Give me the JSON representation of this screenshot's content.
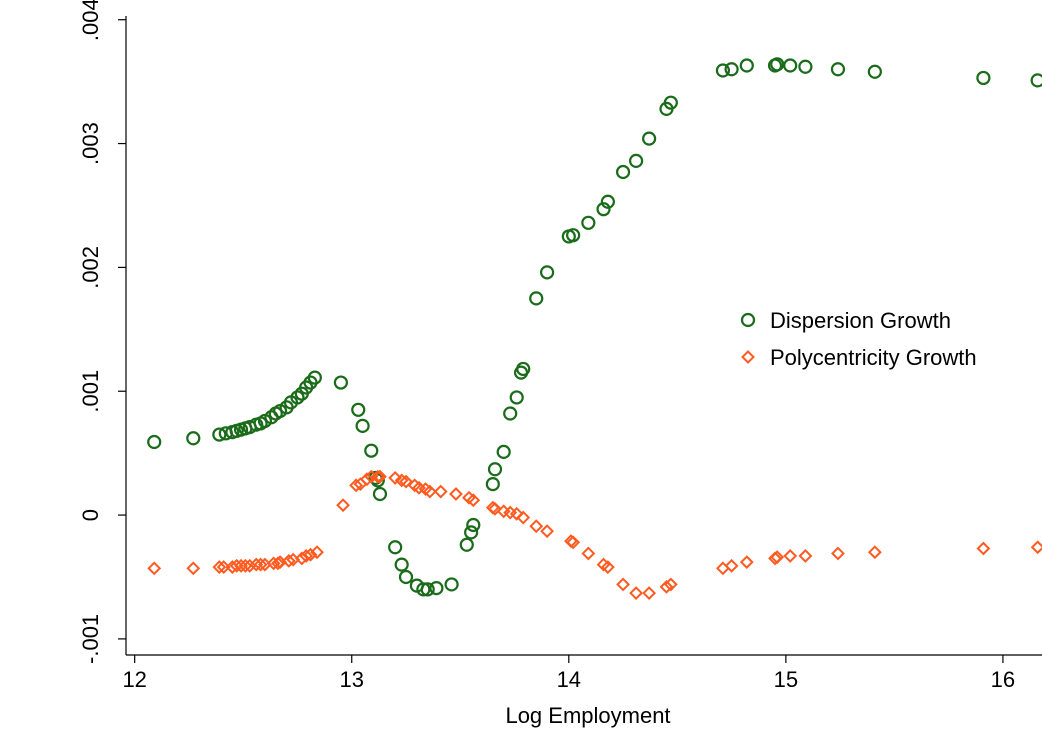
{
  "chart_data": {
    "type": "scatter",
    "title": "",
    "xlabel": "Log Employment",
    "ylabel": "",
    "xlim": [
      11.96,
      16.18
    ],
    "ylim": [
      -0.00113,
      0.00403
    ],
    "xticks": [
      12,
      13,
      14,
      15,
      16
    ],
    "xtick_labels": [
      "12",
      "13",
      "14",
      "15",
      "16"
    ],
    "yticks": [
      -0.001,
      0,
      0.001,
      0.002,
      0.003,
      0.004
    ],
    "ytick_labels": [
      "-.001",
      "0",
      ".001",
      ".002",
      ".003",
      ".004"
    ],
    "grid": false,
    "legend_position": "right",
    "colors": {
      "dispersion": "#1a6b1a",
      "polycentricity": "#ff5a1f"
    },
    "series": [
      {
        "name": "Dispersion Growth",
        "marker": "circle",
        "color": "#1a6b1a",
        "points": [
          [
            12.09,
            0.00059
          ],
          [
            12.27,
            0.00062
          ],
          [
            12.39,
            0.00065
          ],
          [
            12.42,
            0.00066
          ],
          [
            12.45,
            0.00067
          ],
          [
            12.47,
            0.00068
          ],
          [
            12.49,
            0.00069
          ],
          [
            12.51,
            0.0007
          ],
          [
            12.53,
            0.00071
          ],
          [
            12.56,
            0.00073
          ],
          [
            12.58,
            0.00074
          ],
          [
            12.6,
            0.00076
          ],
          [
            12.63,
            0.00079
          ],
          [
            12.65,
            0.00082
          ],
          [
            12.67,
            0.00084
          ],
          [
            12.7,
            0.00087
          ],
          [
            12.72,
            0.00091
          ],
          [
            12.75,
            0.00095
          ],
          [
            12.77,
            0.00098
          ],
          [
            12.79,
            0.00103
          ],
          [
            12.81,
            0.00107
          ],
          [
            12.83,
            0.00111
          ],
          [
            12.95,
            0.00107
          ],
          [
            13.03,
            0.00085
          ],
          [
            13.05,
            0.00072
          ],
          [
            13.09,
            0.00052
          ],
          [
            13.11,
            0.0003
          ],
          [
            13.12,
            0.00028
          ],
          [
            13.13,
            0.00017
          ],
          [
            13.2,
            -0.00026
          ],
          [
            13.23,
            -0.0004
          ],
          [
            13.25,
            -0.0005
          ],
          [
            13.3,
            -0.00057
          ],
          [
            13.33,
            -0.0006
          ],
          [
            13.35,
            -0.0006
          ],
          [
            13.39,
            -0.00059
          ],
          [
            13.46,
            -0.00056
          ],
          [
            13.53,
            -0.00024
          ],
          [
            13.55,
            -0.00014
          ],
          [
            13.56,
            -8e-05
          ],
          [
            13.65,
            0.00025
          ],
          [
            13.66,
            0.00037
          ],
          [
            13.7,
            0.00051
          ],
          [
            13.73,
            0.00082
          ],
          [
            13.76,
            0.00095
          ],
          [
            13.78,
            0.00115
          ],
          [
            13.79,
            0.00118
          ],
          [
            13.85,
            0.00175
          ],
          [
            13.9,
            0.00196
          ],
          [
            14.0,
            0.00225
          ],
          [
            14.02,
            0.00226
          ],
          [
            14.09,
            0.00236
          ],
          [
            14.16,
            0.00247
          ],
          [
            14.18,
            0.00253
          ],
          [
            14.25,
            0.00277
          ],
          [
            14.31,
            0.00286
          ],
          [
            14.37,
            0.00304
          ],
          [
            14.45,
            0.00328
          ],
          [
            14.47,
            0.00333
          ],
          [
            14.71,
            0.00359
          ],
          [
            14.75,
            0.0036
          ],
          [
            14.82,
            0.00363
          ],
          [
            14.95,
            0.00363
          ],
          [
            14.96,
            0.00364
          ],
          [
            15.02,
            0.00363
          ],
          [
            15.09,
            0.00362
          ],
          [
            15.24,
            0.0036
          ],
          [
            15.41,
            0.00358
          ],
          [
            15.91,
            0.00353
          ],
          [
            16.16,
            0.00351
          ]
        ]
      },
      {
        "name": "Polycentricity Growth",
        "marker": "diamond",
        "color": "#ff5a1f",
        "points": [
          [
            12.09,
            -0.00043
          ],
          [
            12.27,
            -0.00043
          ],
          [
            12.39,
            -0.00042
          ],
          [
            12.41,
            -0.00042
          ],
          [
            12.45,
            -0.00042
          ],
          [
            12.47,
            -0.00041
          ],
          [
            12.49,
            -0.00041
          ],
          [
            12.51,
            -0.00041
          ],
          [
            12.53,
            -0.00041
          ],
          [
            12.56,
            -0.0004
          ],
          [
            12.58,
            -0.0004
          ],
          [
            12.6,
            -0.0004
          ],
          [
            12.64,
            -0.00039
          ],
          [
            12.66,
            -0.00039
          ],
          [
            12.67,
            -0.00038
          ],
          [
            12.71,
            -0.00037
          ],
          [
            12.73,
            -0.00036
          ],
          [
            12.77,
            -0.00035
          ],
          [
            12.79,
            -0.00033
          ],
          [
            12.81,
            -0.00032
          ],
          [
            12.84,
            -0.0003
          ],
          [
            12.96,
            8e-05
          ],
          [
            13.02,
            0.00024
          ],
          [
            13.04,
            0.00025
          ],
          [
            13.07,
            0.00029
          ],
          [
            13.09,
            0.00031
          ],
          [
            13.12,
            0.00031
          ],
          [
            13.13,
            0.00031
          ],
          [
            13.2,
            0.0003
          ],
          [
            13.23,
            0.00028
          ],
          [
            13.25,
            0.00027
          ],
          [
            13.29,
            0.00024
          ],
          [
            13.31,
            0.00022
          ],
          [
            13.34,
            0.00021
          ],
          [
            13.36,
            0.00019
          ],
          [
            13.41,
            0.00019
          ],
          [
            13.48,
            0.00017
          ],
          [
            13.54,
            0.00014
          ],
          [
            13.56,
            0.00012
          ],
          [
            13.65,
            6e-05
          ],
          [
            13.66,
            5e-05
          ],
          [
            13.7,
            3e-05
          ],
          [
            13.73,
            2e-05
          ],
          [
            13.76,
            1e-05
          ],
          [
            13.79,
            -2e-05
          ],
          [
            13.85,
            -9e-05
          ],
          [
            13.9,
            -0.00013
          ],
          [
            14.01,
            -0.00021
          ],
          [
            14.02,
            -0.00022
          ],
          [
            14.09,
            -0.00031
          ],
          [
            14.16,
            -0.0004
          ],
          [
            14.18,
            -0.00042
          ],
          [
            14.25,
            -0.00056
          ],
          [
            14.31,
            -0.00063
          ],
          [
            14.37,
            -0.00063
          ],
          [
            14.45,
            -0.00058
          ],
          [
            14.47,
            -0.00056
          ],
          [
            14.71,
            -0.00043
          ],
          [
            14.75,
            -0.00041
          ],
          [
            14.82,
            -0.00038
          ],
          [
            14.95,
            -0.00035
          ],
          [
            14.96,
            -0.00034
          ],
          [
            15.02,
            -0.00033
          ],
          [
            15.09,
            -0.00033
          ],
          [
            15.24,
            -0.00031
          ],
          [
            15.41,
            -0.0003
          ],
          [
            15.91,
            -0.00027
          ],
          [
            16.16,
            -0.00026
          ]
        ]
      }
    ]
  }
}
